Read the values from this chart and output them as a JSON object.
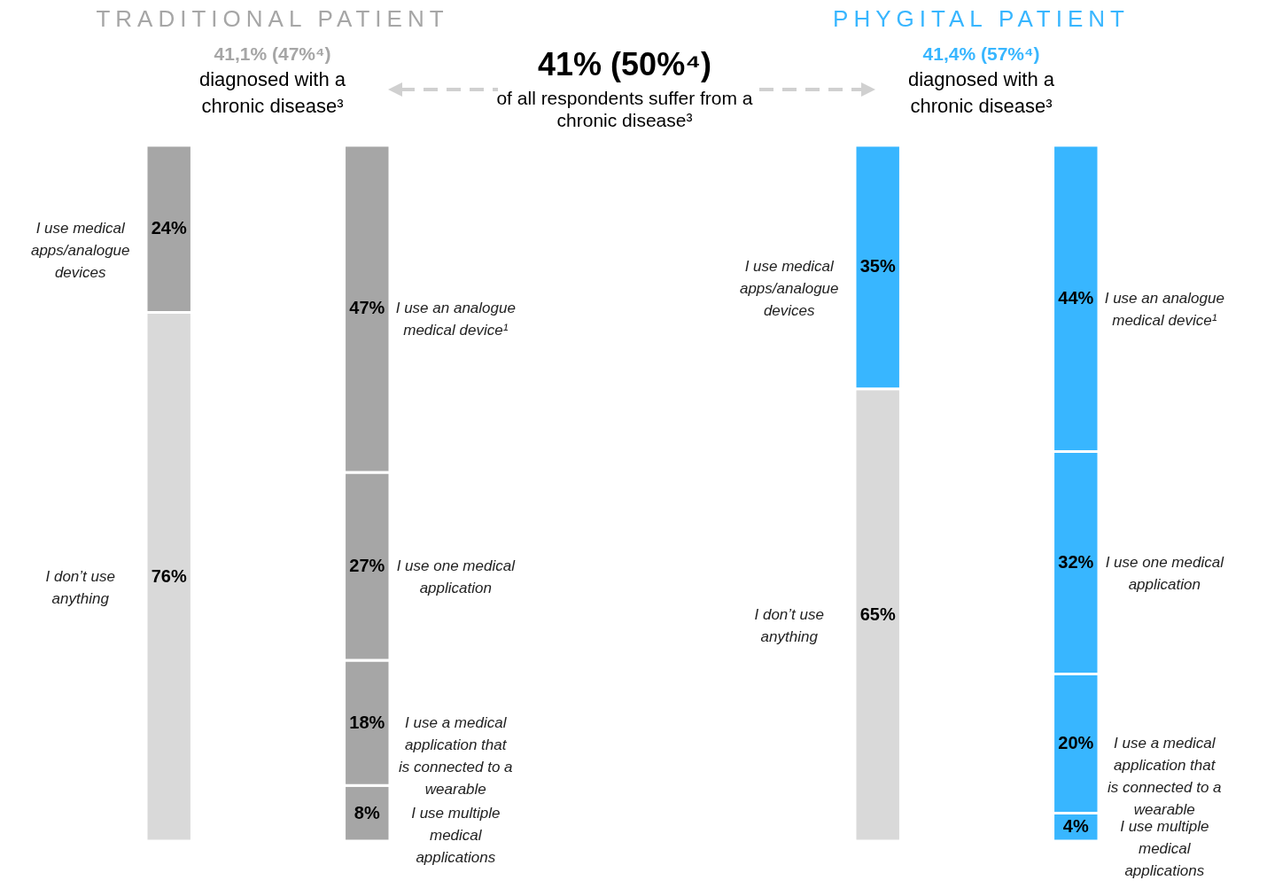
{
  "chart_data": [
    {
      "type": "bar",
      "stacked": true,
      "title": "TRADITIONAL PATIENT",
      "subtitle": "41,1% (47%⁴)",
      "annotations": [
        "diagnosed with a chronic disease³"
      ],
      "categories": [
        null,
        null
      ],
      "series": [
        {
          "name": "I don’t use anything",
          "color": "#d9d9d9",
          "values": [
            76,
            null
          ],
          "value_labels": [
            "76%",
            null
          ]
        },
        {
          "name": "I use medical apps/analogue devices",
          "color": "#a6a6a6",
          "values": [
            24,
            null
          ],
          "value_labels": [
            "24%",
            null
          ]
        },
        {
          "name": "I use multiple medical applications",
          "color": "#a6a6a6",
          "values": [
            null,
            8
          ],
          "value_labels": [
            null,
            "8%"
          ]
        },
        {
          "name": "I use a medical application that is connected to a wearable",
          "color": "#a6a6a6",
          "values": [
            null,
            18
          ],
          "value_labels": [
            null,
            "18%"
          ]
        },
        {
          "name": "I use one medical application",
          "color": "#a6a6a6",
          "values": [
            null,
            27
          ],
          "value_labels": [
            null,
            "27%"
          ]
        },
        {
          "name": "I use an analogue medical device¹",
          "color": "#a6a6a6",
          "values": [
            null,
            47
          ],
          "value_labels": [
            null,
            "47%"
          ]
        }
      ]
    },
    {
      "type": "other",
      "title": "41% (50%⁴)",
      "subtitle": "of all respondents suffer from a chronic disease³"
    },
    {
      "type": "bar",
      "stacked": true,
      "title": "PHYGITAL PATIENT",
      "subtitle": "41,4% (57%⁴)",
      "annotations": [
        "diagnosed with a chronic disease³"
      ],
      "categories": [
        null,
        null
      ],
      "series": [
        {
          "name": "I don’t use anything",
          "color": "#d9d9d9",
          "values": [
            65,
            null
          ],
          "value_labels": [
            "65%",
            null
          ]
        },
        {
          "name": "I use medical apps/analogue devices",
          "color": "#38b6ff",
          "values": [
            35,
            null
          ],
          "value_labels": [
            "35%",
            null
          ]
        },
        {
          "name": "I use multiple medical applications",
          "color": "#38b6ff",
          "values": [
            null,
            4
          ],
          "value_labels": [
            null,
            "4%"
          ]
        },
        {
          "name": "I use a medical application that is connected to a wearable",
          "color": "#38b6ff",
          "values": [
            null,
            20
          ],
          "value_labels": [
            null,
            "20%"
          ]
        },
        {
          "name": "I use one medical application",
          "color": "#38b6ff",
          "values": [
            null,
            32
          ],
          "value_labels": [
            null,
            "32%"
          ]
        },
        {
          "name": "I use an analogue medical device¹",
          "color": "#38b6ff",
          "values": [
            null,
            44
          ],
          "value_labels": [
            null,
            "44%"
          ]
        }
      ]
    }
  ]
}
